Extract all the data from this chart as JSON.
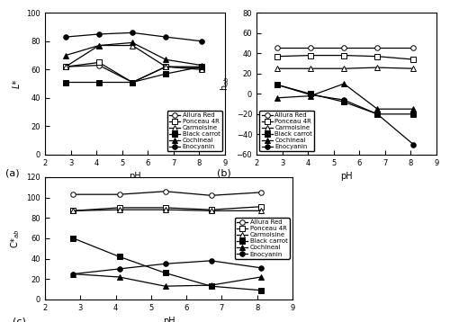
{
  "ph": [
    2.8,
    4.1,
    5.4,
    6.7,
    8.1
  ],
  "L_star": {
    "Allura Red": [
      62,
      63,
      51,
      62,
      62
    ],
    "Ponceau 4R": [
      62,
      65,
      51,
      62,
      61
    ],
    "Carmoisine": [
      62,
      77,
      77,
      62,
      60
    ],
    "Black carrot": [
      51,
      51,
      51,
      57,
      62
    ],
    "Cochineal": [
      70,
      77,
      79,
      67,
      63
    ],
    "Enocyanin": [
      83,
      85,
      86,
      83,
      80
    ]
  },
  "h_ab": {
    "Allura Red": [
      46,
      46,
      46,
      46,
      46
    ],
    "Ponceau 4R": [
      37,
      38,
      38,
      37,
      34
    ],
    "Carmoisine": [
      25,
      25,
      25,
      26,
      25
    ],
    "Black carrot": [
      9,
      0,
      -8,
      -20,
      -20
    ],
    "Cochineal": [
      -4,
      -2,
      10,
      -15,
      -15
    ],
    "Enocyanin": [
      9,
      -1,
      -6,
      -20,
      -50
    ]
  },
  "C_ab": {
    "Allura Red": [
      103,
      103,
      106,
      102,
      105
    ],
    "Ponceau 4R": [
      87,
      90,
      90,
      88,
      91
    ],
    "Carmoisine": [
      87,
      88,
      88,
      87,
      87
    ],
    "Black carrot": [
      60,
      42,
      26,
      13,
      9
    ],
    "Cochineal": [
      25,
      22,
      13,
      14,
      22
    ],
    "Enocyanin": [
      25,
      30,
      35,
      38,
      31
    ]
  },
  "colorants": [
    "Allura Red",
    "Ponceau 4R",
    "Carmoisine",
    "Black carrot",
    "Cochineal",
    "Enocyanin"
  ],
  "markers": {
    "Allura Red": "o",
    "Ponceau 4R": "s",
    "Carmoisine": "^",
    "Black carrot": "s",
    "Cochineal": "^",
    "Enocyanin": "o"
  },
  "filled": {
    "Allura Red": false,
    "Ponceau 4R": false,
    "Carmoisine": false,
    "Black carrot": true,
    "Cochineal": true,
    "Enocyanin": true
  },
  "line_color": "black",
  "markersize": 4,
  "linewidth": 0.9,
  "legend_fontsize": 5,
  "tick_labelsize": 6,
  "axis_labelsize": 7,
  "label_a": "(a)",
  "label_b": "(b)",
  "label_c": "(c)"
}
